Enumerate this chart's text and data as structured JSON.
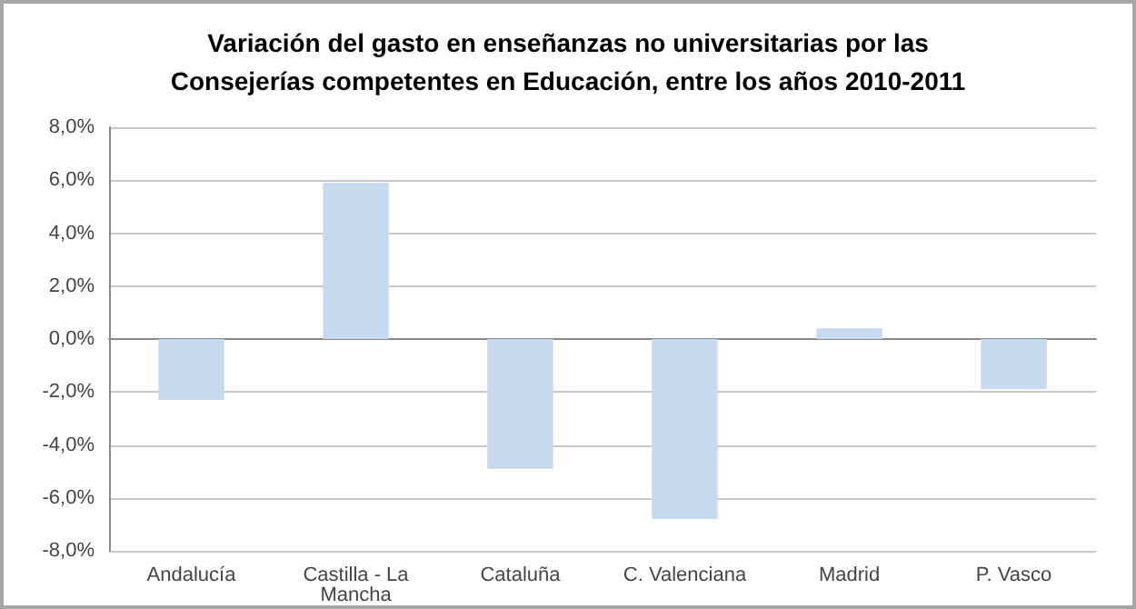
{
  "chart_data": {
    "type": "bar",
    "title": "Variación del gasto en enseñanzas no universitarias por las\nConsejerías competentes en Educación, entre los años 2010-2011",
    "categories": [
      "Andalucía",
      "Castilla - La\nMancha",
      "Cataluña",
      "C. Valenciana",
      "Madrid",
      "P. Vasco"
    ],
    "values": [
      -2.3,
      5.9,
      -4.9,
      -6.8,
      0.4,
      -1.9
    ],
    "color": "#c6d9f1",
    "ylim": [
      -8,
      8
    ],
    "yticks": [
      {
        "value": -8,
        "label": "-8,0%"
      },
      {
        "value": -6,
        "label": "-6,0%"
      },
      {
        "value": -4,
        "label": "-4,0%"
      },
      {
        "value": -2,
        "label": "-2,0%"
      },
      {
        "value": 0,
        "label": "0,0%"
      },
      {
        "value": 2,
        "label": "2,0%"
      },
      {
        "value": 4,
        "label": "4,0%"
      },
      {
        "value": 6,
        "label": "6,0%"
      },
      {
        "value": 8,
        "label": "8,0%"
      }
    ],
    "grid": "y"
  }
}
